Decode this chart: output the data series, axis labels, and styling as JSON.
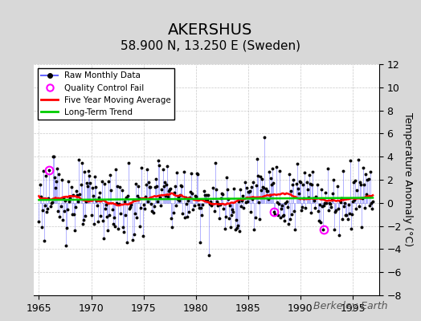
{
  "title": "AKERSHUS",
  "subtitle": "58.900 N, 13.250 E (Sweden)",
  "ylabel": "Temperature Anomaly (°C)",
  "credit": "Berkeley Earth",
  "xlim": [
    1964.5,
    1997.5
  ],
  "ylim": [
    -8,
    12
  ],
  "yticks": [
    -8,
    -6,
    -4,
    -2,
    0,
    2,
    4,
    6,
    8,
    10,
    12
  ],
  "xticks": [
    1965,
    1970,
    1975,
    1980,
    1985,
    1990,
    1995
  ],
  "background_color": "#d8d8d8",
  "plot_background": "#ffffff",
  "grid_color": "#bbbbbb",
  "line_color": "#6666ff",
  "marker_color": "#000000",
  "moving_avg_color": "#ff0000",
  "trend_color": "#00cc00",
  "qc_fail_color": "#ff00ff",
  "title_fontsize": 14,
  "subtitle_fontsize": 11,
  "tick_fontsize": 9,
  "ylabel_fontsize": 9,
  "credit_fontsize": 9
}
